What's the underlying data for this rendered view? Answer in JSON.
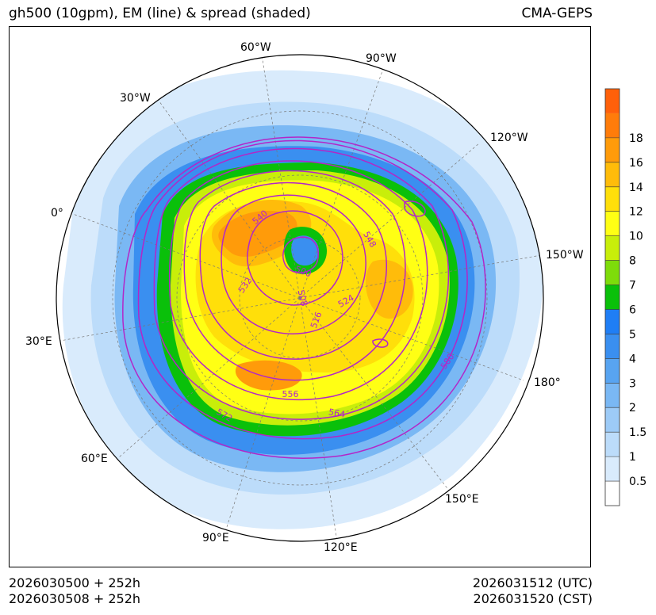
{
  "header": {
    "title_left": "gh500 (10gpm), EM (line) & spread (shaded)",
    "title_right": "CMA-GEPS"
  },
  "footer": {
    "init_utc": "2026030500 + 252h",
    "init_cst": "2026030508 + 252h",
    "valid_utc": "2026031512 (UTC)",
    "valid_cst": "2026031520 (CST)"
  },
  "map": {
    "projection": "north-polar-stereographic",
    "longitude_labels": [
      "60°W",
      "90°W",
      "30°W",
      "120°W",
      "0°",
      "150°W",
      "30°E",
      "180°",
      "60°E",
      "150°E",
      "90°E",
      "120°E"
    ],
    "contour_labels": [
      "540",
      "548",
      "500",
      "532",
      "508",
      "516",
      "524",
      "580",
      "556",
      "564",
      "572"
    ],
    "contour_color": "#b326c8"
  },
  "colorbar": {
    "levels": [
      "0.5",
      "1",
      "1.5",
      "2",
      "3",
      "4",
      "5",
      "6",
      "7",
      "8",
      "10",
      "12",
      "14",
      "16",
      "18"
    ],
    "colors": [
      "#ffffff",
      "#d9ebfc",
      "#bcdcfa",
      "#9dcbf7",
      "#7ab8f4",
      "#58a4f1",
      "#3a8ff0",
      "#1f7ef5",
      "#0ac00a",
      "#7edc0a",
      "#c8ee0a",
      "#ffff14",
      "#ffdf0a",
      "#ffbc0a",
      "#ff9b0a",
      "#ff7c0a",
      "#ff600a"
    ]
  }
}
